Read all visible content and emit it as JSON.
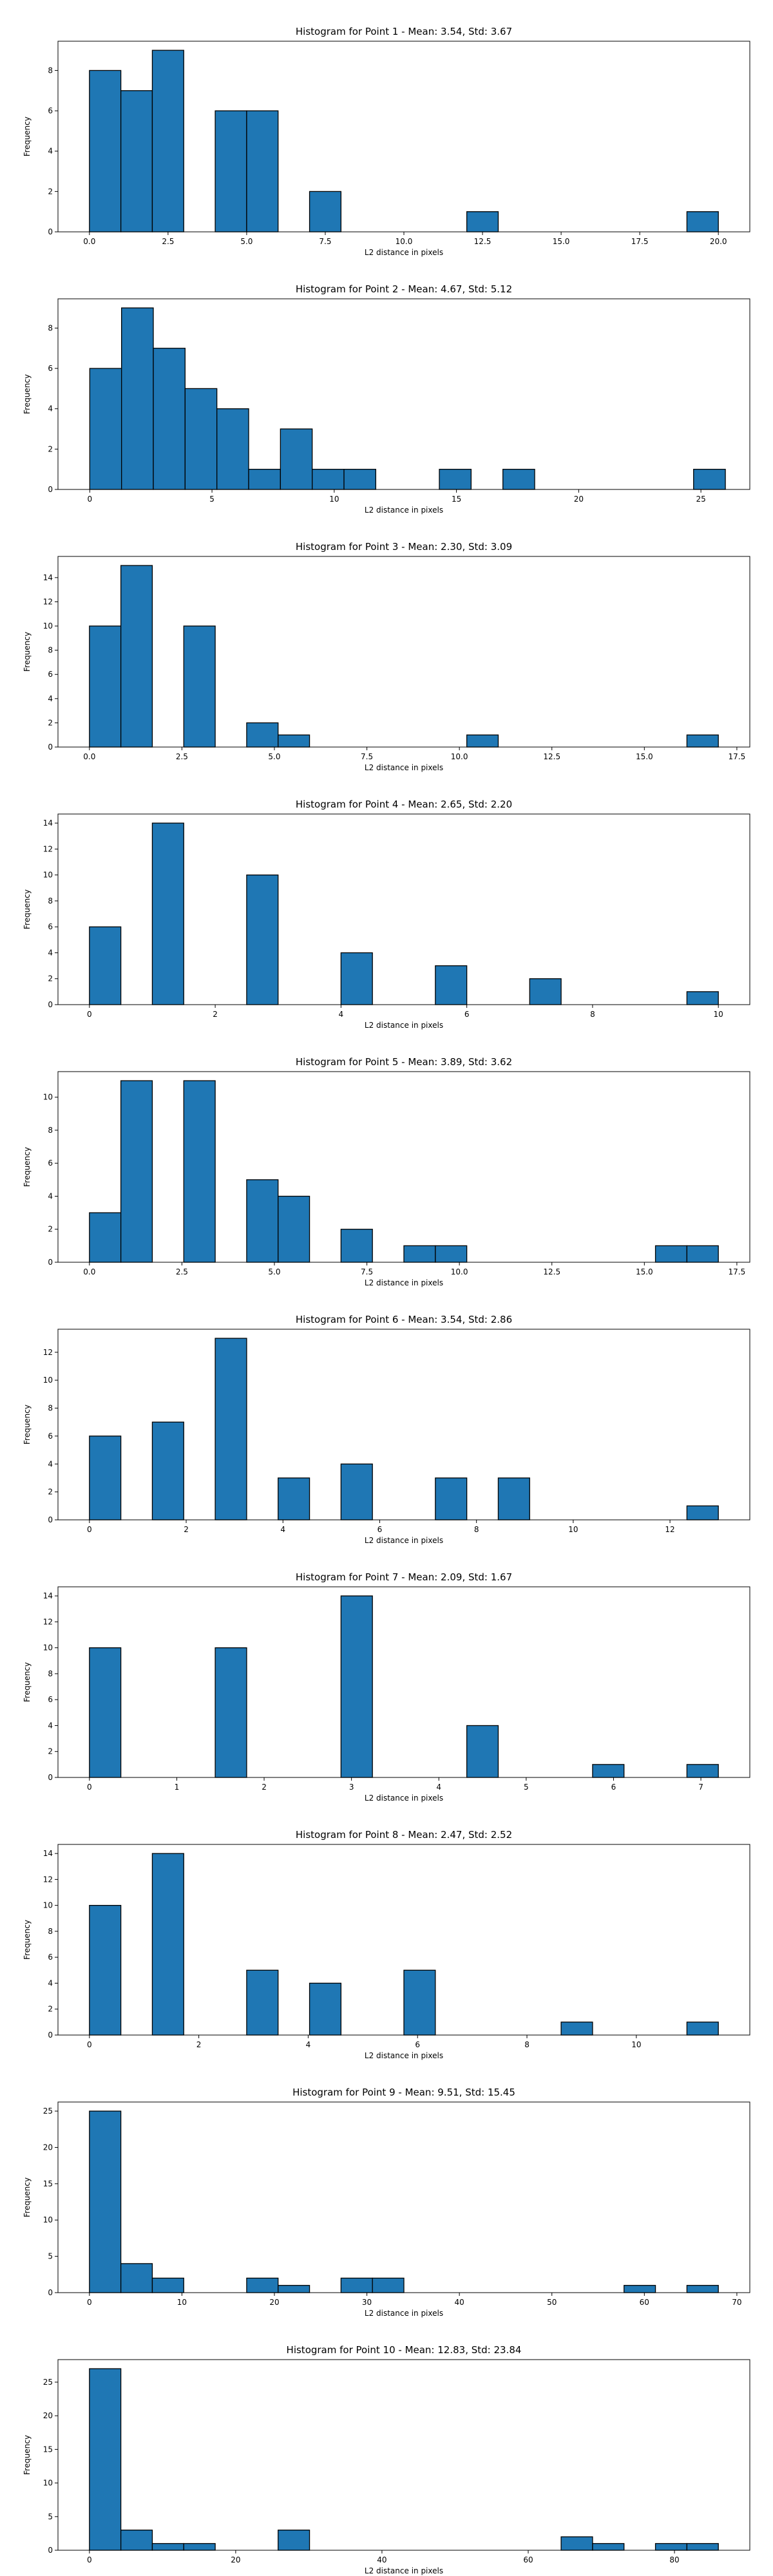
{
  "style": {
    "bar_color": "#1f77b4",
    "edge_color": "#000000",
    "background": "#ffffff"
  },
  "chart_data": [
    {
      "type": "bar",
      "title": "Histogram for Point 1 - Mean: 3.54, Std: 3.67",
      "xlabel": "L2 distance in pixels",
      "ylabel": "Frequency",
      "grid": false,
      "xlim": [
        -1.0,
        21.0
      ],
      "ylim": [
        0,
        9.45
      ],
      "xticks": [
        0.0,
        2.5,
        5.0,
        7.5,
        10.0,
        12.5,
        15.0,
        17.5,
        20.0
      ],
      "xtick_labels": [
        "0.0",
        "2.5",
        "5.0",
        "7.5",
        "10.0",
        "12.5",
        "15.0",
        "17.5",
        "20.0"
      ],
      "yticks": [
        0,
        2,
        4,
        6,
        8
      ],
      "bin_edges": [
        0.0,
        1.0,
        2.0,
        3.0,
        4.0,
        5.0,
        6.0,
        7.0,
        8.0,
        9.0,
        10.0,
        11.0,
        12.0,
        13.0,
        14.0,
        15.0,
        16.0,
        17.0,
        18.0,
        19.0,
        20.0
      ],
      "counts": [
        8,
        7,
        9,
        0,
        6,
        6,
        0,
        2,
        0,
        0,
        0,
        0,
        1,
        0,
        0,
        0,
        0,
        0,
        0,
        1
      ]
    },
    {
      "type": "bar",
      "title": "Histogram for Point 2 - Mean: 4.67, Std: 5.12",
      "xlabel": "L2 distance in pixels",
      "ylabel": "Frequency",
      "grid": false,
      "xlim": [
        -1.3,
        27.0
      ],
      "ylim": [
        0,
        9.45
      ],
      "xticks": [
        0,
        5,
        10,
        15,
        20,
        25
      ],
      "xtick_labels": [
        "0",
        "5",
        "10",
        "15",
        "20",
        "25"
      ],
      "yticks": [
        0,
        2,
        4,
        6,
        8
      ],
      "bin_edges": [
        0.0,
        1.3,
        2.6,
        3.9,
        5.2,
        6.5,
        7.8,
        9.1,
        10.4,
        11.7,
        13.0,
        14.3,
        15.6,
        16.9,
        18.2,
        19.5,
        20.8,
        22.1,
        23.4,
        24.7,
        26.0
      ],
      "counts": [
        6,
        9,
        7,
        5,
        4,
        1,
        3,
        1,
        1,
        0,
        0,
        1,
        0,
        1,
        0,
        0,
        0,
        0,
        0,
        1
      ]
    },
    {
      "type": "bar",
      "title": "Histogram for Point 3 - Mean: 2.30, Std: 3.09",
      "xlabel": "L2 distance in pixels",
      "ylabel": "Frequency",
      "grid": false,
      "xlim": [
        -0.85,
        17.85
      ],
      "ylim": [
        0,
        15.75
      ],
      "xticks": [
        0.0,
        2.5,
        5.0,
        7.5,
        10.0,
        12.5,
        15.0,
        17.5
      ],
      "xtick_labels": [
        "0.0",
        "2.5",
        "5.0",
        "7.5",
        "10.0",
        "12.5",
        "15.0",
        "17.5"
      ],
      "yticks": [
        0,
        2,
        4,
        6,
        8,
        10,
        12,
        14
      ],
      "bin_edges": [
        0.0,
        0.85,
        1.7,
        2.55,
        3.4,
        4.25,
        5.1,
        5.95,
        6.8,
        7.65,
        8.5,
        9.35,
        10.2,
        11.05,
        11.9,
        12.75,
        13.6,
        14.45,
        15.3,
        16.15,
        17.0
      ],
      "counts": [
        10,
        15,
        0,
        10,
        0,
        2,
        1,
        0,
        0,
        0,
        0,
        0,
        1,
        0,
        0,
        0,
        0,
        0,
        0,
        1
      ]
    },
    {
      "type": "bar",
      "title": "Histogram for Point 4 - Mean: 2.65, Std: 2.20",
      "xlabel": "L2 distance in pixels",
      "ylabel": "Frequency",
      "grid": false,
      "xlim": [
        -0.5,
        10.5
      ],
      "ylim": [
        0,
        14.7
      ],
      "xticks": [
        0,
        2,
        4,
        6,
        8,
        10
      ],
      "xtick_labels": [
        "0",
        "2",
        "4",
        "6",
        "8",
        "10"
      ],
      "yticks": [
        0,
        2,
        4,
        6,
        8,
        10,
        12,
        14
      ],
      "bin_edges": [
        0.0,
        0.5,
        1.0,
        1.5,
        2.0,
        2.5,
        3.0,
        3.5,
        4.0,
        4.5,
        5.0,
        5.5,
        6.0,
        6.5,
        7.0,
        7.5,
        8.0,
        8.5,
        9.0,
        9.5,
        10.0
      ],
      "counts": [
        6,
        0,
        14,
        0,
        0,
        10,
        0,
        0,
        4,
        0,
        0,
        3,
        0,
        0,
        2,
        0,
        0,
        0,
        0,
        1
      ]
    },
    {
      "type": "bar",
      "title": "Histogram for Point 5 - Mean: 3.89, Std: 3.62",
      "xlabel": "L2 distance in pixels",
      "ylabel": "Frequency",
      "grid": false,
      "xlim": [
        -0.85,
        17.85
      ],
      "ylim": [
        0,
        11.55
      ],
      "xticks": [
        0.0,
        2.5,
        5.0,
        7.5,
        10.0,
        12.5,
        15.0,
        17.5
      ],
      "xtick_labels": [
        "0.0",
        "2.5",
        "5.0",
        "7.5",
        "10.0",
        "12.5",
        "15.0",
        "17.5"
      ],
      "yticks": [
        0,
        2,
        4,
        6,
        8,
        10
      ],
      "bin_edges": [
        0.0,
        0.85,
        1.7,
        2.55,
        3.4,
        4.25,
        5.1,
        5.95,
        6.8,
        7.65,
        8.5,
        9.35,
        10.2,
        11.05,
        11.9,
        12.75,
        13.6,
        14.45,
        15.3,
        16.15,
        17.0
      ],
      "counts": [
        3,
        11,
        0,
        11,
        0,
        5,
        4,
        0,
        2,
        0,
        1,
        1,
        0,
        0,
        0,
        0,
        0,
        0,
        1,
        1
      ]
    },
    {
      "type": "bar",
      "title": "Histogram for Point 6 - Mean: 3.54, Std: 2.86",
      "xlabel": "L2 distance in pixels",
      "ylabel": "Frequency",
      "grid": false,
      "xlim": [
        -0.65,
        13.65
      ],
      "ylim": [
        0,
        13.65
      ],
      "xticks": [
        0,
        2,
        4,
        6,
        8,
        10,
        12
      ],
      "xtick_labels": [
        "0",
        "2",
        "4",
        "6",
        "8",
        "10",
        "12"
      ],
      "yticks": [
        0,
        2,
        4,
        6,
        8,
        10,
        12
      ],
      "bin_edges": [
        0.0,
        0.65,
        1.3,
        1.95,
        2.6,
        3.25,
        3.9,
        4.55,
        5.2,
        5.85,
        6.5,
        7.15,
        7.8,
        8.45,
        9.1,
        9.75,
        10.4,
        11.05,
        11.7,
        12.35,
        13.0
      ],
      "counts": [
        6,
        0,
        7,
        0,
        13,
        0,
        3,
        0,
        4,
        0,
        0,
        3,
        0,
        3,
        0,
        0,
        0,
        0,
        0,
        1
      ]
    },
    {
      "type": "bar",
      "title": "Histogram for Point 7 - Mean: 2.09, Std: 1.67",
      "xlabel": "L2 distance in pixels",
      "ylabel": "Frequency",
      "grid": false,
      "xlim": [
        -0.36,
        7.56
      ],
      "ylim": [
        0,
        14.7
      ],
      "xticks": [
        0,
        1,
        2,
        3,
        4,
        5,
        6,
        7
      ],
      "xtick_labels": [
        "0",
        "1",
        "2",
        "3",
        "4",
        "5",
        "6",
        "7"
      ],
      "yticks": [
        0,
        2,
        4,
        6,
        8,
        10,
        12,
        14
      ],
      "bin_edges": [
        0.0,
        0.36,
        0.72,
        1.08,
        1.44,
        1.8,
        2.16,
        2.52,
        2.88,
        3.24,
        3.6,
        3.96,
        4.32,
        4.68,
        5.04,
        5.4,
        5.76,
        6.12,
        6.48,
        6.84,
        7.2
      ],
      "counts": [
        10,
        0,
        0,
        0,
        10,
        0,
        0,
        0,
        14,
        0,
        0,
        0,
        4,
        0,
        0,
        0,
        1,
        0,
        0,
        1
      ]
    },
    {
      "type": "bar",
      "title": "Histogram for Point 8 - Mean: 2.47, Std: 2.52",
      "xlabel": "L2 distance in pixels",
      "ylabel": "Frequency",
      "grid": false,
      "xlim": [
        -0.575,
        12.075
      ],
      "ylim": [
        0,
        14.7
      ],
      "xticks": [
        0,
        2,
        4,
        6,
        8,
        10
      ],
      "xtick_labels": [
        "0",
        "2",
        "4",
        "6",
        "8",
        "10"
      ],
      "yticks": [
        0,
        2,
        4,
        6,
        8,
        10,
        12,
        14
      ],
      "bin_edges": [
        0.0,
        0.575,
        1.15,
        1.725,
        2.3,
        2.875,
        3.45,
        4.025,
        4.6,
        5.175,
        5.75,
        6.325,
        6.9,
        7.475,
        8.05,
        8.625,
        9.2,
        9.775,
        10.35,
        10.925,
        11.5
      ],
      "counts": [
        10,
        0,
        14,
        0,
        0,
        5,
        0,
        4,
        0,
        0,
        5,
        0,
        0,
        0,
        0,
        1,
        0,
        0,
        0,
        1
      ]
    },
    {
      "type": "bar",
      "title": "Histogram for Point 9 - Mean: 9.51, Std: 15.45",
      "xlabel": "L2 distance in pixels",
      "ylabel": "Frequency",
      "grid": false,
      "xlim": [
        -3.4,
        71.4
      ],
      "ylim": [
        0,
        26.25
      ],
      "xticks": [
        0,
        10,
        20,
        30,
        40,
        50,
        60,
        70
      ],
      "xtick_labels": [
        "0",
        "10",
        "20",
        "30",
        "40",
        "50",
        "60",
        "70"
      ],
      "yticks": [
        0,
        5,
        10,
        15,
        20,
        25
      ],
      "bin_edges": [
        0.0,
        3.4,
        6.8,
        10.2,
        13.6,
        17.0,
        20.4,
        23.8,
        27.2,
        30.6,
        34.0,
        37.4,
        40.8,
        44.2,
        47.6,
        51.0,
        54.4,
        57.8,
        61.2,
        64.6,
        68.0
      ],
      "counts": [
        25,
        4,
        2,
        0,
        0,
        2,
        1,
        0,
        2,
        2,
        0,
        0,
        0,
        0,
        0,
        0,
        0,
        1,
        0,
        1
      ]
    },
    {
      "type": "bar",
      "title": "Histogram for Point 10 - Mean: 12.83, Std: 23.84",
      "xlabel": "L2 distance in pixels",
      "ylabel": "Frequency",
      "grid": false,
      "xlim": [
        -4.3,
        90.3
      ],
      "ylim": [
        0,
        28.35
      ],
      "xticks": [
        0,
        20,
        40,
        60,
        80
      ],
      "xtick_labels": [
        "0",
        "20",
        "40",
        "60",
        "80"
      ],
      "yticks": [
        0,
        5,
        10,
        15,
        20,
        25
      ],
      "bin_edges": [
        0.0,
        4.3,
        8.6,
        12.9,
        17.2,
        21.5,
        25.8,
        30.1,
        34.4,
        38.7,
        43.0,
        47.3,
        51.6,
        55.9,
        60.2,
        64.5,
        68.8,
        73.1,
        77.4,
        81.7,
        86.0
      ],
      "counts": [
        27,
        3,
        1,
        1,
        0,
        0,
        3,
        0,
        0,
        0,
        0,
        0,
        0,
        0,
        0,
        2,
        1,
        0,
        1,
        1
      ]
    }
  ]
}
